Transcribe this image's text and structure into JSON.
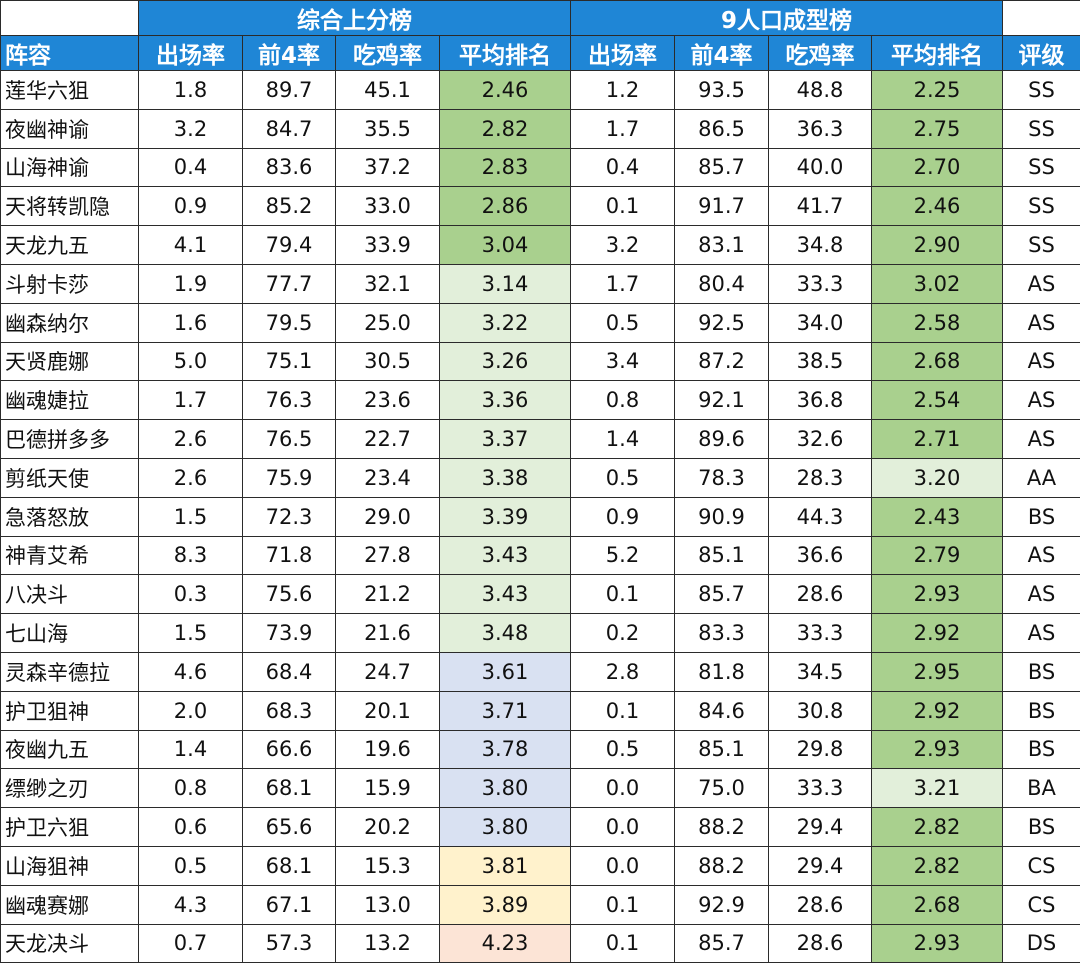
{
  "headers": {
    "group_overall": "综合上分榜",
    "group_nine": "9人口成型榜",
    "lineup": "阵容",
    "appear": "出场率",
    "top4": "前4率",
    "win": "吃鸡率",
    "avg": "平均排名",
    "appear2": "出场率",
    "top4_2": "前4率",
    "win2": "吃鸡率",
    "avg2": "平均排名",
    "grade": "评级"
  },
  "colors": {
    "header_blue": "#1f86d6",
    "green_strong": "#a9d08e",
    "green_light": "#e2efda",
    "blue_light": "#d9e1f2",
    "yellow_light": "#fff2cc",
    "red_light": "#fce4d6"
  },
  "rows": [
    {
      "name": "莲华六狙",
      "a": "1.8",
      "b": "89.7",
      "c": "45.1",
      "d": "2.46",
      "dc": "g1",
      "e": "1.2",
      "f": "93.5",
      "g": "48.8",
      "h": "2.25",
      "hc": "g1",
      "grade": "SS"
    },
    {
      "name": "夜幽神谕",
      "a": "3.2",
      "b": "84.7",
      "c": "35.5",
      "d": "2.82",
      "dc": "g1",
      "e": "1.7",
      "f": "86.5",
      "g": "36.3",
      "h": "2.75",
      "hc": "g1",
      "grade": "SS"
    },
    {
      "name": "山海神谕",
      "a": "0.4",
      "b": "83.6",
      "c": "37.2",
      "d": "2.83",
      "dc": "g1",
      "e": "0.4",
      "f": "85.7",
      "g": "40.0",
      "h": "2.70",
      "hc": "g1",
      "grade": "SS"
    },
    {
      "name": "天将转凯隐",
      "a": "0.9",
      "b": "85.2",
      "c": "33.0",
      "d": "2.86",
      "dc": "g1",
      "e": "0.1",
      "f": "91.7",
      "g": "41.7",
      "h": "2.46",
      "hc": "g1",
      "grade": "SS"
    },
    {
      "name": "天龙九五",
      "a": "4.1",
      "b": "79.4",
      "c": "33.9",
      "d": "3.04",
      "dc": "g1",
      "e": "3.2",
      "f": "83.1",
      "g": "34.8",
      "h": "2.90",
      "hc": "g1",
      "grade": "SS"
    },
    {
      "name": "斗射卡莎",
      "a": "1.9",
      "b": "77.7",
      "c": "32.1",
      "d": "3.14",
      "dc": "g2",
      "e": "1.7",
      "f": "80.4",
      "g": "33.3",
      "h": "3.02",
      "hc": "g1",
      "grade": "AS"
    },
    {
      "name": "幽森纳尔",
      "a": "1.6",
      "b": "79.5",
      "c": "25.0",
      "d": "3.22",
      "dc": "g2",
      "e": "0.5",
      "f": "92.5",
      "g": "34.0",
      "h": "2.58",
      "hc": "g1",
      "grade": "AS"
    },
    {
      "name": "天贤鹿娜",
      "a": "5.0",
      "b": "75.1",
      "c": "30.5",
      "d": "3.26",
      "dc": "g2",
      "e": "3.4",
      "f": "87.2",
      "g": "38.5",
      "h": "2.68",
      "hc": "g1",
      "grade": "AS"
    },
    {
      "name": "幽魂婕拉",
      "a": "1.7",
      "b": "76.3",
      "c": "23.6",
      "d": "3.36",
      "dc": "g2",
      "e": "0.8",
      "f": "92.1",
      "g": "36.8",
      "h": "2.54",
      "hc": "g1",
      "grade": "AS"
    },
    {
      "name": "巴德拼多多",
      "a": "2.6",
      "b": "76.5",
      "c": "22.7",
      "d": "3.37",
      "dc": "g2",
      "e": "1.4",
      "f": "89.6",
      "g": "32.6",
      "h": "2.71",
      "hc": "g1",
      "grade": "AS"
    },
    {
      "name": "剪纸天使",
      "a": "2.6",
      "b": "75.9",
      "c": "23.4",
      "d": "3.38",
      "dc": "g2",
      "e": "0.5",
      "f": "78.3",
      "g": "28.3",
      "h": "3.20",
      "hc": "g2",
      "grade": "AA"
    },
    {
      "name": "急落怒放",
      "a": "1.5",
      "b": "72.3",
      "c": "29.0",
      "d": "3.39",
      "dc": "g2",
      "e": "0.9",
      "f": "90.9",
      "g": "44.3",
      "h": "2.43",
      "hc": "g1",
      "grade": "BS"
    },
    {
      "name": "神青艾希",
      "a": "8.3",
      "b": "71.8",
      "c": "27.8",
      "d": "3.43",
      "dc": "g2",
      "e": "5.2",
      "f": "85.1",
      "g": "36.6",
      "h": "2.79",
      "hc": "g1",
      "grade": "AS"
    },
    {
      "name": "八决斗",
      "a": "0.3",
      "b": "75.6",
      "c": "21.2",
      "d": "3.43",
      "dc": "g2",
      "e": "0.1",
      "f": "85.7",
      "g": "28.6",
      "h": "2.93",
      "hc": "g1",
      "grade": "AS"
    },
    {
      "name": "七山海",
      "a": "1.5",
      "b": "73.9",
      "c": "21.6",
      "d": "3.48",
      "dc": "g2",
      "e": "0.2",
      "f": "83.3",
      "g": "33.3",
      "h": "2.92",
      "hc": "g1",
      "grade": "AS"
    },
    {
      "name": "灵森辛德拉",
      "a": "4.6",
      "b": "68.4",
      "c": "24.7",
      "d": "3.61",
      "dc": "b1",
      "e": "2.8",
      "f": "81.8",
      "g": "34.5",
      "h": "2.95",
      "hc": "g1",
      "grade": "BS"
    },
    {
      "name": "护卫狙神",
      "a": "2.0",
      "b": "68.3",
      "c": "20.1",
      "d": "3.71",
      "dc": "b1",
      "e": "0.1",
      "f": "84.6",
      "g": "30.8",
      "h": "2.92",
      "hc": "g1",
      "grade": "BS"
    },
    {
      "name": "夜幽九五",
      "a": "1.4",
      "b": "66.6",
      "c": "19.6",
      "d": "3.78",
      "dc": "b1",
      "e": "0.5",
      "f": "85.1",
      "g": "29.8",
      "h": "2.93",
      "hc": "g1",
      "grade": "BS"
    },
    {
      "name": "缥缈之刃",
      "a": "0.8",
      "b": "68.1",
      "c": "15.9",
      "d": "3.80",
      "dc": "b1",
      "e": "0.0",
      "f": "75.0",
      "g": "33.3",
      "h": "3.21",
      "hc": "g2",
      "grade": "BA"
    },
    {
      "name": "护卫六狙",
      "a": "0.6",
      "b": "65.6",
      "c": "20.2",
      "d": "3.80",
      "dc": "b1",
      "e": "0.0",
      "f": "88.2",
      "g": "29.4",
      "h": "2.82",
      "hc": "g1",
      "grade": "BS"
    },
    {
      "name": "山海狙神",
      "a": "0.5",
      "b": "68.1",
      "c": "15.3",
      "d": "3.81",
      "dc": "y1",
      "e": "0.0",
      "f": "88.2",
      "g": "29.4",
      "h": "2.82",
      "hc": "g1",
      "grade": "CS"
    },
    {
      "name": "幽魂赛娜",
      "a": "4.3",
      "b": "67.1",
      "c": "13.0",
      "d": "3.89",
      "dc": "y1",
      "e": "0.1",
      "f": "92.9",
      "g": "28.6",
      "h": "2.68",
      "hc": "g1",
      "grade": "CS"
    },
    {
      "name": "天龙决斗",
      "a": "0.7",
      "b": "57.3",
      "c": "13.2",
      "d": "4.23",
      "dc": "r1",
      "e": "0.1",
      "f": "85.7",
      "g": "28.6",
      "h": "2.93",
      "hc": "g1",
      "grade": "DS"
    }
  ]
}
